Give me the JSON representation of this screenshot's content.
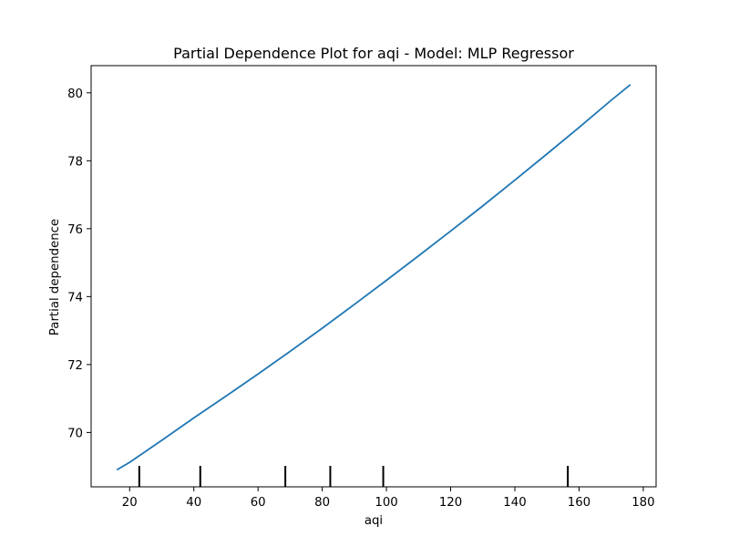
{
  "chart_data": {
    "type": "line",
    "title": "Partial Dependence Plot for aqi - Model: MLP Regressor",
    "xlabel": "aqi",
    "ylabel": "Partial dependence",
    "xlim": [
      8.0,
      184.0
    ],
    "ylim": [
      68.4,
      80.8
    ],
    "xticks": [
      20,
      40,
      60,
      80,
      100,
      120,
      140,
      160,
      180
    ],
    "yticks": [
      70,
      72,
      74,
      76,
      78,
      80
    ],
    "xtick_labels": [
      "20",
      "40",
      "60",
      "80",
      "100",
      "120",
      "140",
      "160",
      "180"
    ],
    "ytick_labels": [
      "70",
      "72",
      "74",
      "76",
      "78",
      "80"
    ],
    "grid": false,
    "series": [
      {
        "color": "#1f77b4",
        "x": [
          16,
          20,
          30,
          40,
          50,
          60,
          70,
          80,
          90,
          100,
          110,
          120,
          130,
          140,
          150,
          160,
          170,
          176
        ],
        "y": [
          68.9,
          69.12,
          69.77,
          70.43,
          71.07,
          71.72,
          72.39,
          73.07,
          73.77,
          74.48,
          75.2,
          75.93,
          76.67,
          77.43,
          78.2,
          78.98,
          79.78,
          80.24
        ]
      }
    ],
    "rug": {
      "color": "#000000",
      "x": [
        23,
        42,
        68.5,
        82.5,
        99,
        156.5
      ]
    }
  }
}
